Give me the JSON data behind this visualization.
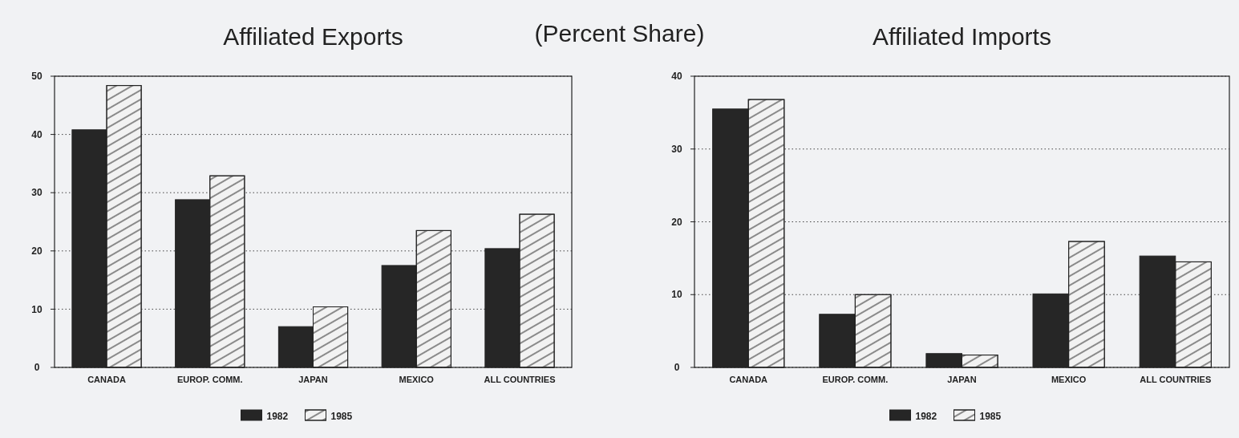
{
  "chart_data": [
    {
      "type": "bar",
      "title": "Affiliated Exports",
      "subtitle": "(Percent Share)",
      "categories": [
        "CANADA",
        "EUROP. COMM.",
        "JAPAN",
        "MEXICO",
        "ALL COUNTRIES"
      ],
      "series": [
        {
          "name": "1982",
          "color": "#262626",
          "values": [
            40.8,
            28.8,
            7.0,
            17.5,
            20.4
          ]
        },
        {
          "name": "1985",
          "color": "#f2f2f2",
          "values": [
            48.4,
            32.9,
            10.4,
            23.5,
            26.3
          ]
        }
      ],
      "ylim": [
        0,
        50
      ],
      "yticks": [
        0,
        10,
        20,
        30,
        40,
        50
      ],
      "grid": "y",
      "legend": "bottom"
    },
    {
      "type": "bar",
      "title": "Affiliated Imports",
      "categories": [
        "CANADA",
        "EUROP. COMM.",
        "JAPAN",
        "MEXICO",
        "ALL COUNTRIES"
      ],
      "series": [
        {
          "name": "1982",
          "color": "#262626",
          "values": [
            35.5,
            7.3,
            1.9,
            10.1,
            15.3
          ]
        },
        {
          "name": "1985",
          "color": "#f2f2f2",
          "values": [
            36.8,
            10.0,
            1.7,
            17.3,
            14.5
          ]
        }
      ],
      "ylim": [
        0,
        40
      ],
      "yticks": [
        0,
        10,
        20,
        30,
        40
      ],
      "grid": "y",
      "legend": "bottom"
    }
  ]
}
